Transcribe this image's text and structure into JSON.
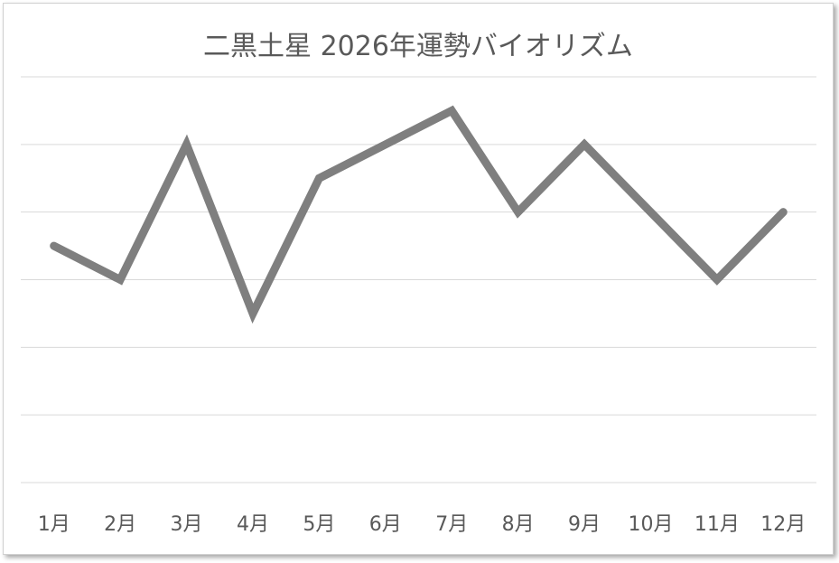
{
  "chart_data": {
    "type": "line",
    "title": "二黒土星  2026年運勢バイオリズム",
    "xlabel": "",
    "ylabel": "",
    "categories": [
      "1月",
      "2月",
      "3月",
      "4月",
      "5月",
      "6月",
      "7月",
      "8月",
      "9月",
      "10月",
      "11月",
      "12月"
    ],
    "series": [
      {
        "values": [
          3.5,
          3.0,
          5.0,
          2.5,
          4.5,
          5.0,
          5.5,
          4.0,
          5.0,
          4.0,
          3.0,
          4.0
        ]
      }
    ],
    "ylim": [
      0,
      6
    ],
    "y_gridlines": true,
    "y_tick_labels_shown": false,
    "legend": "none",
    "line_color": "#7f7f7f",
    "gridline_color": "#d9d9d9"
  }
}
